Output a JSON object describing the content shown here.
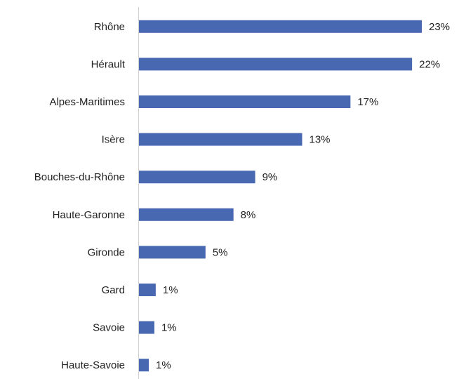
{
  "chart_data": {
    "type": "bar",
    "orientation": "horizontal",
    "categories": [
      "Rhône",
      "Hérault",
      "Alpes-Maritimes",
      "Isère",
      "Bouches-du-Rhône",
      "Haute-Garonne",
      "Gironde",
      "Gard",
      "Savoie",
      "Haute-Savoie"
    ],
    "values": [
      22.95,
      22.16,
      17.16,
      13.24,
      9.43,
      7.67,
      5.4,
      1.36,
      1.25,
      0.8
    ],
    "value_labels": [
      "23%",
      "22%",
      "17%",
      "13%",
      "9%",
      "8%",
      "5%",
      "1%",
      "1%",
      "1%"
    ],
    "color": "#4868b2"
  }
}
